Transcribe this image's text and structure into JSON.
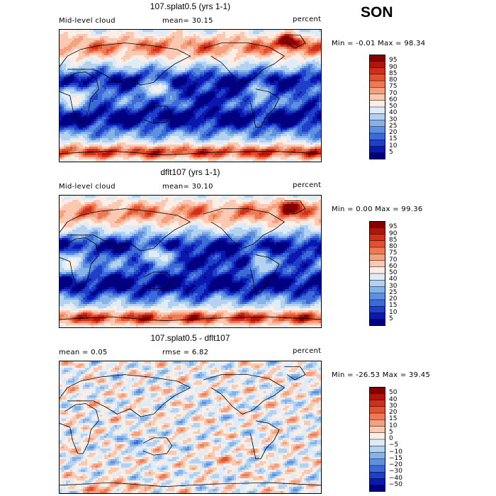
{
  "season": "SON",
  "panels": [
    {
      "id": "p1",
      "title": "107.splat0.5 (yrs 1-1)",
      "left_label": "Mid-level cloud",
      "center_label": "mean=   30.15",
      "units": "percent",
      "minmax": "Min =   -0.01  Max =   98.34",
      "colorbar": {
        "labels": [
          "95",
          "90",
          "85",
          "80",
          "75",
          "70",
          "60",
          "50",
          "40",
          "30",
          "25",
          "20",
          "15",
          "10",
          "5"
        ],
        "colors": [
          "#840000",
          "#b0150a",
          "#d0301b",
          "#e2522e",
          "#ee7a55",
          "#f5a17f",
          "#fbc9b2",
          "#fdeee5",
          "#deebf8",
          "#b4d1f0",
          "#86b2ea",
          "#5e8fe0",
          "#3c6ad6",
          "#1f3fc9",
          "#0a18b0",
          "#000080"
        ]
      },
      "map_palette": [
        "#000080",
        "#0a18b0",
        "#1f3fc9",
        "#3c6ad6",
        "#5e8fe0",
        "#86b2ea",
        "#b4d1f0",
        "#deebf8",
        "#fdeee5",
        "#fbc9b2",
        "#f5a17f",
        "#ee7a55",
        "#e2522e",
        "#d0301b",
        "#b0150a",
        "#840000"
      ]
    },
    {
      "id": "p2",
      "title": "dflt107 (yrs 1-1)",
      "left_label": "Mid-level cloud",
      "center_label": "mean=   30.10",
      "units": "percent",
      "minmax": "Min =    0.00  Max =   99.36",
      "colorbar": {
        "labels": [
          "95",
          "90",
          "85",
          "80",
          "75",
          "70",
          "60",
          "50",
          "40",
          "30",
          "25",
          "20",
          "15",
          "10",
          "5"
        ],
        "colors": [
          "#840000",
          "#b0150a",
          "#d0301b",
          "#e2522e",
          "#ee7a55",
          "#f5a17f",
          "#fbc9b2",
          "#fdeee5",
          "#deebf8",
          "#b4d1f0",
          "#86b2ea",
          "#5e8fe0",
          "#3c6ad6",
          "#1f3fc9",
          "#0a18b0",
          "#000080"
        ]
      },
      "map_palette": [
        "#000080",
        "#0a18b0",
        "#1f3fc9",
        "#3c6ad6",
        "#5e8fe0",
        "#86b2ea",
        "#b4d1f0",
        "#deebf8",
        "#fdeee5",
        "#fbc9b2",
        "#f5a17f",
        "#ee7a55",
        "#e2522e",
        "#d0301b",
        "#b0150a",
        "#840000"
      ]
    },
    {
      "id": "p3",
      "title": "107.splat0.5 - dflt107",
      "left_label": "mean =    0.05",
      "center_label": "rmse =    6.82",
      "units": "percent",
      "minmax": "Min =  -26.53  Max =   39.45",
      "colorbar": {
        "labels": [
          "50",
          "40",
          "30",
          "20",
          "15",
          "10",
          "5",
          "0",
          "−5",
          "−10",
          "−15",
          "−20",
          "−30",
          "−40",
          "−50"
        ],
        "colors": [
          "#840000",
          "#b0150a",
          "#d0301b",
          "#e2522e",
          "#ee7a55",
          "#f5a17f",
          "#fbc9b2",
          "#fdeee5",
          "#deebf8",
          "#b4d1f0",
          "#86b2ea",
          "#5e8fe0",
          "#3c6ad6",
          "#1f3fc9",
          "#0a18b0",
          "#000080"
        ]
      },
      "map_palette": [
        "#000080",
        "#0a18b0",
        "#1f3fc9",
        "#3c6ad6",
        "#5e8fe0",
        "#86b2ea",
        "#b4d1f0",
        "#deebf8",
        "#fdeee5",
        "#fbc9b2",
        "#f5a17f",
        "#ee7a55",
        "#e2522e",
        "#d0301b",
        "#b0150a",
        "#840000"
      ]
    }
  ]
}
